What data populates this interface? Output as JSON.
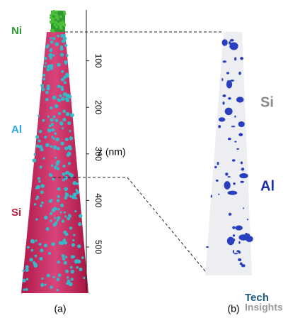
{
  "left_panel": {
    "labels": [
      {
        "text": "Ni",
        "color": "#2e9a35"
      },
      {
        "text": "Al",
        "color": "#2aa8e0"
      },
      {
        "text": "Si",
        "color": "#c21d3a"
      }
    ],
    "axis": {
      "label": "z (nm)",
      "ticks": [
        100,
        200,
        300,
        400,
        500
      ]
    },
    "caption": "(a)"
  },
  "right_panel": {
    "labels": [
      {
        "text": "Si",
        "color": "#8a8a8a"
      },
      {
        "text": "Al",
        "color": "#1f2ea8"
      }
    ],
    "caption": "(b)"
  },
  "logo": {
    "line1": "Tech",
    "line2": "Insights"
  }
}
